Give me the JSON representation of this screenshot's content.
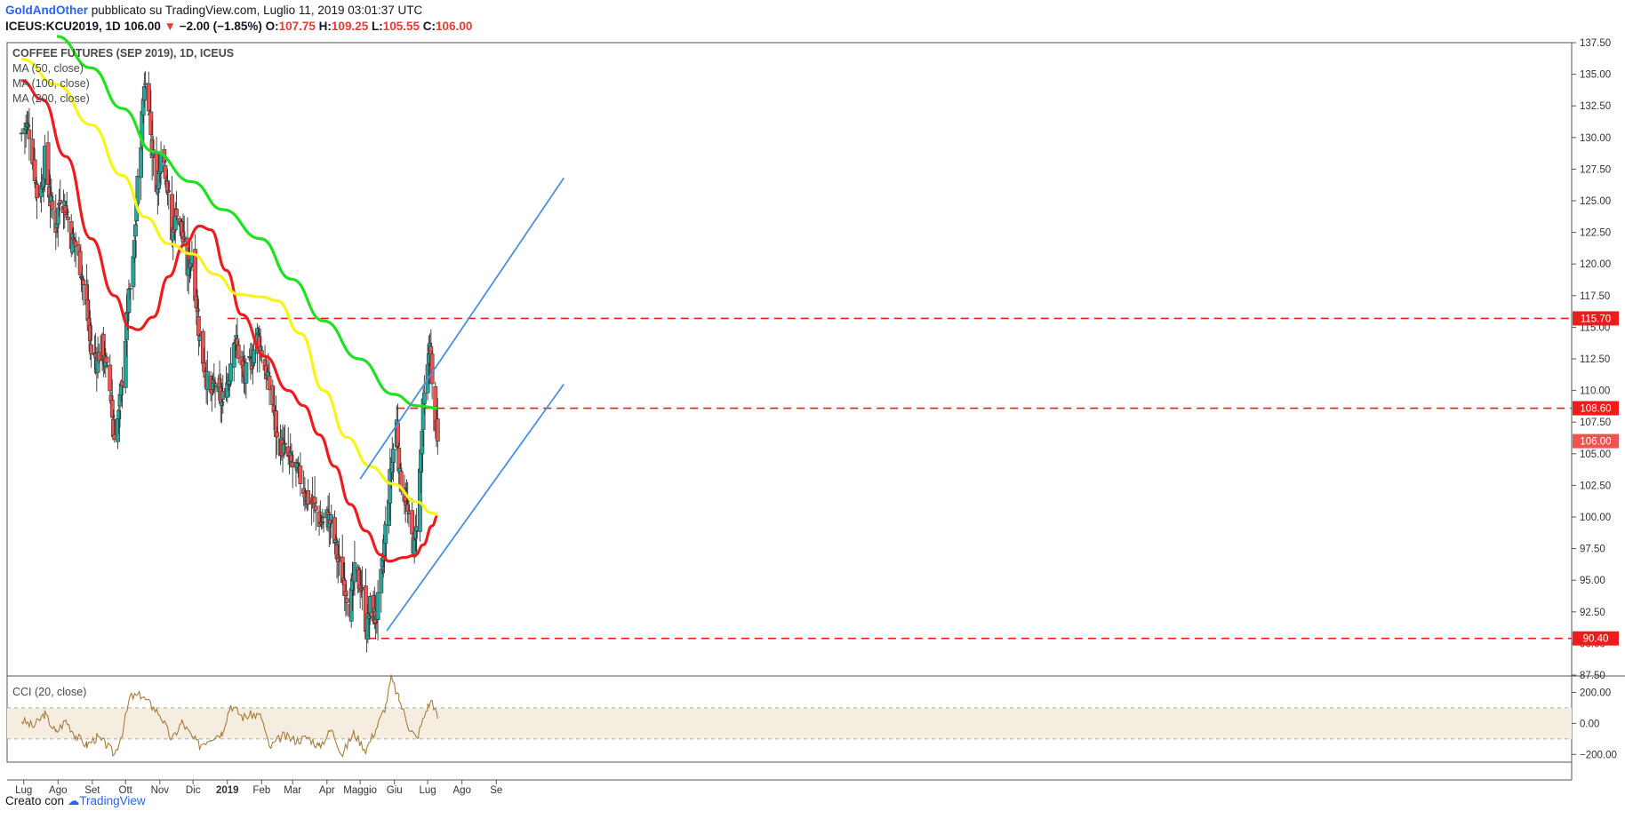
{
  "header": {
    "author": "GoldAndOther",
    "published": "pubblicato su TradingView.com, Luglio 11, 2019 03:01:37 UTC",
    "symbol": "ICEUS:KCU2019, 1D",
    "last": "106.00",
    "change_arrow": "▼",
    "change": "−2.00 (−1.85%)",
    "o_label": "O:",
    "o": "107.75",
    "h_label": "H:",
    "h": "109.25",
    "l_label": "L:",
    "l": "105.55",
    "c_label": "C:",
    "c": "106.00"
  },
  "legend": {
    "title": "COFFEE FUTURES (SEP 2019), 1D, ICEUS",
    "ma50": "MA (50, close)",
    "ma100": "MA (100, close)",
    "ma200": "MA (200, close)",
    "cci": "CCI (20, close)"
  },
  "footer": {
    "prefix": "Creato con",
    "brand": "TradingView"
  },
  "colors": {
    "up": "#26a69a",
    "down": "#ef5350",
    "ma50": "#ee1c1c",
    "ma100": "#f5f51a",
    "ma200": "#20e020",
    "channel": "#4a90e2",
    "level": "#ee1c1c",
    "cci": "#a97c3c",
    "cci_band": "#f5ede0"
  },
  "chart_data": [
    {
      "type": "candlestick",
      "title": "COFFEE FUTURES (SEP 2019), 1D, ICEUS",
      "ylim": [
        87.5,
        137.5
      ],
      "y_ticks": [
        "87.50",
        "90.00",
        "92.50",
        "95.00",
        "97.50",
        "100.00",
        "102.50",
        "105.00",
        "107.50",
        "110.00",
        "112.50",
        "115.00",
        "117.50",
        "120.00",
        "122.50",
        "125.00",
        "127.50",
        "130.00",
        "132.50",
        "135.00",
        "137.50"
      ],
      "x_ticks": [
        "Lug",
        "Ago",
        "Set",
        "Ott",
        "Nov",
        "Dic",
        "2019",
        "Feb",
        "Mar",
        "Apr",
        "Maggio",
        "Giu",
        "Lug",
        "Ago",
        "Se"
      ],
      "price_labels": [
        "115.70",
        "108.60",
        "106.00",
        "90.40"
      ],
      "close_path": [
        [
          "2018-06-29",
          130.3
        ],
        [
          "2018-07-03",
          131.0
        ],
        [
          "2018-07-06",
          130.5
        ],
        [
          "2018-07-10",
          128.0
        ],
        [
          "2018-07-13",
          125.5
        ],
        [
          "2018-07-17",
          126.0
        ],
        [
          "2018-07-20",
          128.5
        ],
        [
          "2018-07-25",
          125.0
        ],
        [
          "2018-07-30",
          123.0
        ],
        [
          "2018-08-03",
          125.5
        ],
        [
          "2018-08-08",
          124.5
        ],
        [
          "2018-08-13",
          122.0
        ],
        [
          "2018-08-17",
          121.5
        ],
        [
          "2018-08-22",
          119.5
        ],
        [
          "2018-08-27",
          116.5
        ],
        [
          "2018-08-31",
          113.0
        ],
        [
          "2018-09-05",
          112.5
        ],
        [
          "2018-09-10",
          113.5
        ],
        [
          "2018-09-14",
          111.5
        ],
        [
          "2018-09-18",
          109.5
        ],
        [
          "2018-09-20",
          106.5
        ],
        [
          "2018-09-25",
          108.0
        ],
        [
          "2018-09-28",
          111.0
        ],
        [
          "2018-10-03",
          116.5
        ],
        [
          "2018-10-08",
          120.0
        ],
        [
          "2018-10-11",
          125.0
        ],
        [
          "2018-10-15",
          130.0
        ],
        [
          "2018-10-18",
          134.5
        ],
        [
          "2018-10-22",
          133.0
        ],
        [
          "2018-10-25",
          129.0
        ],
        [
          "2018-10-30",
          126.0
        ],
        [
          "2018-11-02",
          129.5
        ],
        [
          "2018-11-07",
          127.0
        ],
        [
          "2018-11-12",
          122.0
        ],
        [
          "2018-11-16",
          124.5
        ],
        [
          "2018-11-21",
          122.5
        ],
        [
          "2018-11-26",
          119.5
        ],
        [
          "2018-11-30",
          121.0
        ],
        [
          "2018-12-04",
          117.0
        ],
        [
          "2018-12-07",
          114.0
        ],
        [
          "2018-12-12",
          111.5
        ],
        [
          "2018-12-17",
          109.5
        ],
        [
          "2018-12-21",
          110.5
        ],
        [
          "2018-12-27",
          109.0
        ],
        [
          "2019-01-02",
          111.0
        ],
        [
          "2019-01-07",
          114.5
        ],
        [
          "2019-01-11",
          113.0
        ],
        [
          "2019-01-16",
          111.0
        ],
        [
          "2019-01-22",
          112.0
        ],
        [
          "2019-01-28",
          114.5
        ],
        [
          "2019-02-01",
          113.0
        ],
        [
          "2019-02-06",
          111.0
        ],
        [
          "2019-02-11",
          109.0
        ],
        [
          "2019-02-15",
          106.0
        ],
        [
          "2019-02-20",
          105.5
        ],
        [
          "2019-02-26",
          104.5
        ],
        [
          "2019-03-04",
          103.5
        ],
        [
          "2019-03-08",
          103.0
        ],
        [
          "2019-03-14",
          101.5
        ],
        [
          "2019-03-20",
          101.0
        ],
        [
          "2019-03-26",
          99.5
        ],
        [
          "2019-04-01",
          100.0
        ],
        [
          "2019-04-05",
          99.5
        ],
        [
          "2019-04-11",
          96.5
        ],
        [
          "2019-04-16",
          95.0
        ],
        [
          "2019-04-22",
          93.0
        ],
        [
          "2019-04-26",
          95.5
        ],
        [
          "2019-05-02",
          94.5
        ],
        [
          "2019-05-07",
          91.0
        ],
        [
          "2019-05-10",
          93.0
        ],
        [
          "2019-05-15",
          92.0
        ],
        [
          "2019-05-20",
          95.0
        ],
        [
          "2019-05-24",
          99.0
        ],
        [
          "2019-05-29",
          104.0
        ],
        [
          "2019-06-03",
          107.5
        ],
        [
          "2019-06-06",
          103.0
        ],
        [
          "2019-06-11",
          101.5
        ],
        [
          "2019-06-14",
          99.5
        ],
        [
          "2019-06-19",
          97.5
        ],
        [
          "2019-06-24",
          103.5
        ],
        [
          "2019-06-27",
          108.5
        ],
        [
          "2019-07-01",
          111.5
        ],
        [
          "2019-07-03",
          114.5
        ],
        [
          "2019-07-05",
          110.0
        ],
        [
          "2019-07-08",
          107.5
        ],
        [
          "2019-07-10",
          106.0
        ]
      ],
      "series": [
        {
          "name": "MA (50, close)",
          "points": [
            [
              "2018-06-29",
              134.5
            ],
            [
              "2018-07-18",
              133.0
            ],
            [
              "2018-08-08",
              128.5
            ],
            [
              "2018-08-31",
              122.0
            ],
            [
              "2018-09-21",
              117.5
            ],
            [
              "2018-10-05",
              115.0
            ],
            [
              "2018-10-12",
              114.8
            ],
            [
              "2018-10-26",
              115.8
            ],
            [
              "2018-11-09",
              119.0
            ],
            [
              "2018-11-23",
              121.5
            ],
            [
              "2018-12-07",
              123.0
            ],
            [
              "2018-12-17",
              122.7
            ],
            [
              "2018-12-31",
              119.5
            ],
            [
              "2019-01-14",
              116.0
            ],
            [
              "2019-02-04",
              112.7
            ],
            [
              "2019-02-25",
              110.0
            ],
            [
              "2019-03-11",
              108.8
            ],
            [
              "2019-03-25",
              106.5
            ],
            [
              "2019-04-08",
              104.0
            ],
            [
              "2019-04-22",
              101.0
            ],
            [
              "2019-05-06",
              98.9
            ],
            [
              "2019-05-20",
              97.0
            ],
            [
              "2019-05-27",
              96.5
            ],
            [
              "2019-06-10",
              96.8
            ],
            [
              "2019-06-20",
              97.0
            ],
            [
              "2019-06-27",
              97.8
            ],
            [
              "2019-07-05",
              99.3
            ],
            [
              "2019-07-10",
              100.1
            ]
          ]
        },
        {
          "name": "MA (100, close)",
          "points": [
            [
              "2018-06-29",
              136.2
            ],
            [
              "2018-07-31",
              134.2
            ],
            [
              "2018-08-31",
              131.0
            ],
            [
              "2018-09-28",
              127.0
            ],
            [
              "2018-10-19",
              123.7
            ],
            [
              "2018-11-09",
              121.6
            ],
            [
              "2018-11-30",
              120.8
            ],
            [
              "2018-12-21",
              119.2
            ],
            [
              "2019-01-11",
              117.6
            ],
            [
              "2019-02-01",
              117.4
            ],
            [
              "2019-02-15",
              117.1
            ],
            [
              "2019-03-08",
              114.5
            ],
            [
              "2019-03-29",
              110.0
            ],
            [
              "2019-04-19",
              106.3
            ],
            [
              "2019-05-10",
              104.0
            ],
            [
              "2019-05-31",
              102.6
            ],
            [
              "2019-06-21",
              101.2
            ],
            [
              "2019-07-05",
              100.3
            ],
            [
              "2019-07-10",
              100.2
            ]
          ]
        },
        {
          "name": "MA (200, close)",
          "points": [
            [
              "2018-07-31",
              138.0
            ],
            [
              "2018-08-31",
              135.5
            ],
            [
              "2018-09-28",
              132.3
            ],
            [
              "2018-10-26",
              128.9
            ],
            [
              "2018-11-30",
              126.5
            ],
            [
              "2018-12-28",
              124.3
            ],
            [
              "2019-01-31",
              122.0
            ],
            [
              "2019-02-28",
              118.8
            ],
            [
              "2019-03-29",
              115.5
            ],
            [
              "2019-04-30",
              112.5
            ],
            [
              "2019-05-31",
              109.7
            ],
            [
              "2019-06-21",
              108.8
            ],
            [
              "2019-07-10",
              108.6
            ]
          ]
        }
      ],
      "channel": {
        "upper": [
          [
            "2019-05-01",
            103.0
          ],
          [
            "2019-11-01",
            126.8
          ]
        ],
        "lower": [
          [
            "2019-05-25",
            91.0
          ],
          [
            "2019-11-01",
            110.5
          ]
        ]
      },
      "levels": [
        {
          "from": "2019-01-01",
          "value": 115.7
        },
        {
          "from": "2019-06-03",
          "value": 108.6
        },
        {
          "from": "2019-05-08",
          "value": 90.4
        }
      ]
    },
    {
      "type": "line",
      "title": "CCI (20, close)",
      "ylim": [
        -250,
        300
      ],
      "y_ticks": [
        "200.00",
        "0.00",
        "−200.00"
      ],
      "band": [
        -100,
        100
      ],
      "series": [
        {
          "name": "CCI (20, close)",
          "points": [
            [
              "2018-06-29",
              20
            ],
            [
              "2018-07-10",
              -20
            ],
            [
              "2018-07-20",
              60
            ],
            [
              "2018-07-30",
              -60
            ],
            [
              "2018-08-08",
              20
            ],
            [
              "2018-08-17",
              -80
            ],
            [
              "2018-08-27",
              -140
            ],
            [
              "2018-09-05",
              -90
            ],
            [
              "2018-09-14",
              -140
            ],
            [
              "2018-09-21",
              -200
            ],
            [
              "2018-09-28",
              -60
            ],
            [
              "2018-10-05",
              170
            ],
            [
              "2018-10-15",
              180
            ],
            [
              "2018-10-25",
              110
            ],
            [
              "2018-11-01",
              60
            ],
            [
              "2018-11-12",
              -110
            ],
            [
              "2018-11-21",
              10
            ],
            [
              "2018-11-30",
              -90
            ],
            [
              "2018-12-07",
              -140
            ],
            [
              "2018-12-17",
              -90
            ],
            [
              "2018-12-27",
              -60
            ],
            [
              "2019-01-04",
              120
            ],
            [
              "2019-01-15",
              40
            ],
            [
              "2019-01-25",
              60
            ],
            [
              "2019-02-01",
              40
            ],
            [
              "2019-02-08",
              -160
            ],
            [
              "2019-02-20",
              -80
            ],
            [
              "2019-03-04",
              -110
            ],
            [
              "2019-03-15",
              -90
            ],
            [
              "2019-03-25",
              -150
            ],
            [
              "2019-04-05",
              -40
            ],
            [
              "2019-04-15",
              -200
            ],
            [
              "2019-04-25",
              -60
            ],
            [
              "2019-05-06",
              -170
            ],
            [
              "2019-05-15",
              -40
            ],
            [
              "2019-05-24",
              110
            ],
            [
              "2019-05-29",
              290
            ],
            [
              "2019-06-05",
              160
            ],
            [
              "2019-06-14",
              -20
            ],
            [
              "2019-06-21",
              -100
            ],
            [
              "2019-07-01",
              110
            ],
            [
              "2019-07-05",
              150
            ],
            [
              "2019-07-10",
              30
            ]
          ]
        }
      ]
    }
  ]
}
